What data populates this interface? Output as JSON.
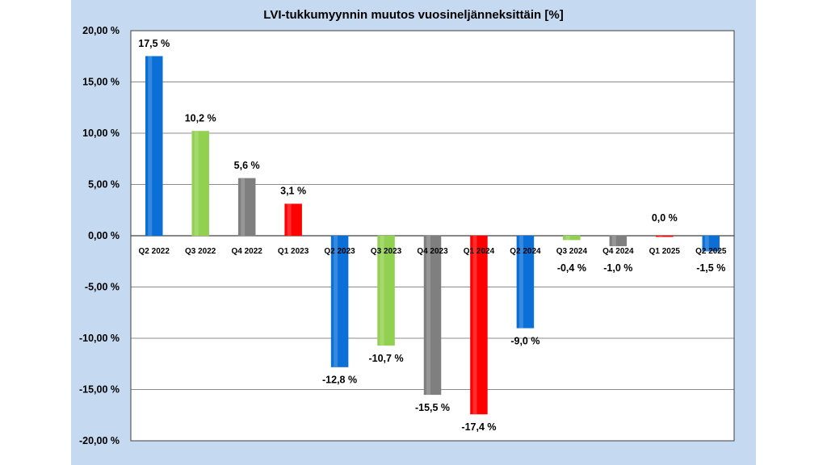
{
  "chart_data": {
    "type": "bar",
    "title": "LVI-tukkumyynnin muutos vuosineljänneksittäin [%]",
    "categories": [
      "Q2 2022",
      "Q3 2022",
      "Q4 2022",
      "Q1 2023",
      "Q2 2023",
      "Q3 2023",
      "Q4 2023",
      "Q1 2024",
      "Q2 2024",
      "Q3 2024",
      "Q4 2024",
      "Q1 2025",
      "Q2 2025"
    ],
    "values": [
      17.5,
      10.2,
      5.6,
      3.1,
      -12.8,
      -10.7,
      -15.5,
      -17.4,
      -9.0,
      -0.4,
      -1.0,
      0.0,
      -1.5
    ],
    "data_labels": [
      "17,5 %",
      "10,2 %",
      "5,6 %",
      "3,1 %",
      "-12,8 %",
      "-10,7 %",
      "-15,5 %",
      "-17,4 %",
      "-9,0 %",
      "-0,4 %",
      "-1,0 %",
      "0,0 %",
      "-1,5 %"
    ],
    "bar_colors": [
      "#0a6fd6",
      "#92d050",
      "#7f7f7f",
      "#ff0000",
      "#0a6fd6",
      "#92d050",
      "#7f7f7f",
      "#ff0000",
      "#0a6fd6",
      "#92d050",
      "#7f7f7f",
      "#ff0000",
      "#0a6fd6"
    ],
    "yticks": [
      20,
      15,
      10,
      5,
      0,
      -5,
      -10,
      -15,
      -20
    ],
    "ytick_labels": [
      "20,00 %",
      "15,00 %",
      "10,00 %",
      "5,00 %",
      "0,00 %",
      "-5,00 %",
      "-10,00 %",
      "-15,00 %",
      "-20,00 %"
    ],
    "ylim": [
      -20,
      20
    ],
    "grid": true,
    "legend": "none"
  }
}
